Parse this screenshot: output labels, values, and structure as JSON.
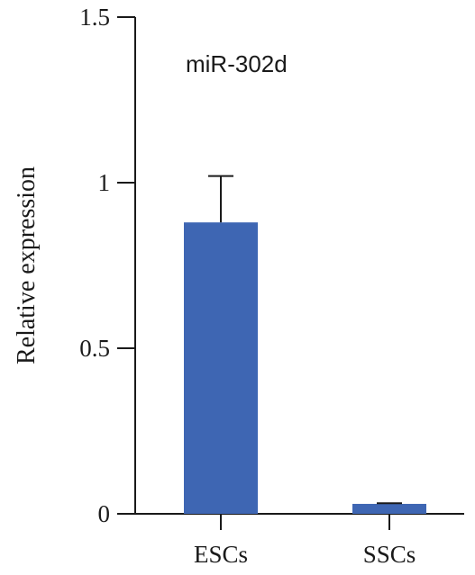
{
  "chart_data": {
    "type": "bar",
    "title": "",
    "annotation": "miR-302d",
    "xlabel": "",
    "ylabel": "Relative expression",
    "categories": [
      "ESCs",
      "SSCs"
    ],
    "values": [
      0.88,
      0.03
    ],
    "error_upper": [
      1.02,
      0.032
    ],
    "ylim": [
      0,
      1.5
    ],
    "yticks": [
      0,
      0.5,
      1,
      1.5
    ],
    "ytick_labels": [
      "0",
      "0.5",
      "1",
      "1.5"
    ],
    "bar_color": "#3E66B3",
    "grid": false,
    "legend": "none"
  }
}
